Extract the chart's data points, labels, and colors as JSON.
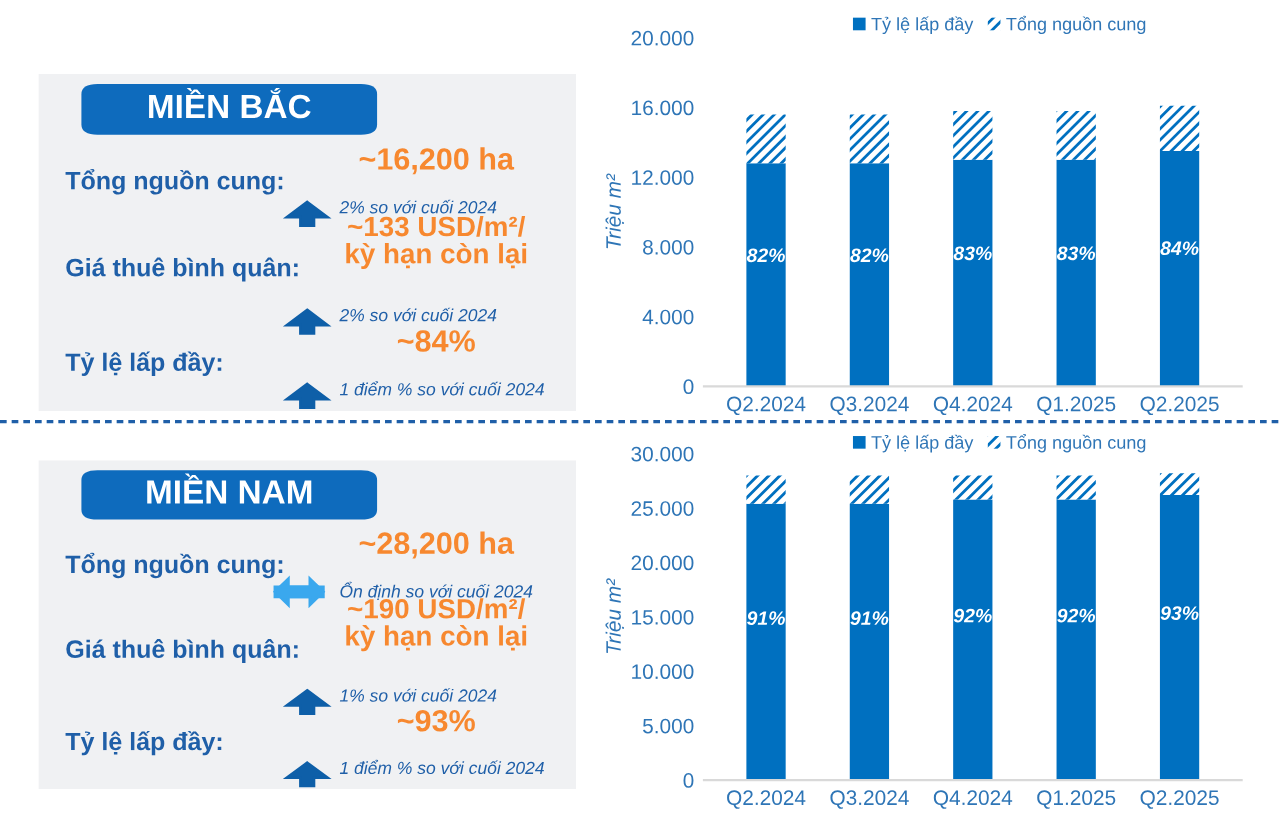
{
  "chart_data": [
    {
      "type": "other",
      "title": "MIỀN BẮC",
      "annotations": [
        "Tổng nguồn cung:",
        "~16,200 ha",
        "2% so với cuối 2024",
        "Giá thuê bình quân:",
        "~133 USD/m²/\nkỳ hạn còn lại",
        "2% so với cuối 2024",
        "Tỷ lệ lấp đầy:",
        "~84%",
        "1 điểm % so với cuối 2024"
      ]
    },
    {
      "type": "bar",
      "stacked": true,
      "categories": [
        "Q2.2024",
        "Q3.2024",
        "Q4.2024",
        "Q1.2025",
        "Q2.2025"
      ],
      "ylabel": "Triệu m²",
      "ylim": [
        0,
        20000
      ],
      "yticks": [
        {
          "value": 0,
          "label": "0"
        },
        {
          "value": 4000,
          "label": "4.000"
        },
        {
          "value": 8000,
          "label": "8.000"
        },
        {
          "value": 12000,
          "label": "12.000"
        },
        {
          "value": 16000,
          "label": "16.000"
        },
        {
          "value": 20000,
          "label": "20.000"
        }
      ],
      "legend": "top",
      "grid": false,
      "series": [
        {
          "name": "Tỷ lệ lấp đầy",
          "color": "#0070c0",
          "values": [
            12800,
            12800,
            13000,
            13000,
            13500
          ]
        },
        {
          "name": "Tổng nguồn cung",
          "color": "#0070c0",
          "values": [
            2800,
            2800,
            2800,
            2800,
            2600
          ]
        }
      ],
      "annotations": [
        "82%",
        "82%",
        "83%",
        "83%",
        "84%"
      ]
    },
    {
      "type": "other",
      "title": "MIỀN NAM",
      "annotations": [
        "Tổng nguồn cung:",
        "~28,200 ha",
        "Ổn định so với cuối 2024",
        "Giá thuê bình quân:",
        "~190 USD/m²/\nkỳ hạn còn lại",
        "1% so với cuối 2024",
        "Tỷ lệ lấp đầy:",
        "~93%",
        "1 điểm % so với cuối 2024"
      ]
    },
    {
      "type": "bar",
      "stacked": true,
      "categories": [
        "Q2.2024",
        "Q3.2024",
        "Q4.2024",
        "Q1.2025",
        "Q2.2025"
      ],
      "ylabel": "Triệu m²",
      "ylim": [
        0,
        30000
      ],
      "yticks": [
        {
          "value": 0,
          "label": "0"
        },
        {
          "value": 5000,
          "label": "5.000"
        },
        {
          "value": 10000,
          "label": "10.000"
        },
        {
          "value": 15000,
          "label": "15.000"
        },
        {
          "value": 20000,
          "label": "20.000"
        },
        {
          "value": 25000,
          "label": "25.000"
        },
        {
          "value": 30000,
          "label": "30.000"
        }
      ],
      "legend": "top",
      "grid": false,
      "series": [
        {
          "name": "Tỷ lệ lấp đầy",
          "color": "#0070c0",
          "values": [
            25400,
            25400,
            25800,
            25800,
            26200
          ]
        },
        {
          "name": "Tổng nguồn cung",
          "color": "#0070c0",
          "values": [
            2600,
            2600,
            2200,
            2200,
            2000
          ]
        }
      ],
      "annotations": [
        "91%",
        "91%",
        "92%",
        "92%",
        "93%"
      ]
    }
  ]
}
